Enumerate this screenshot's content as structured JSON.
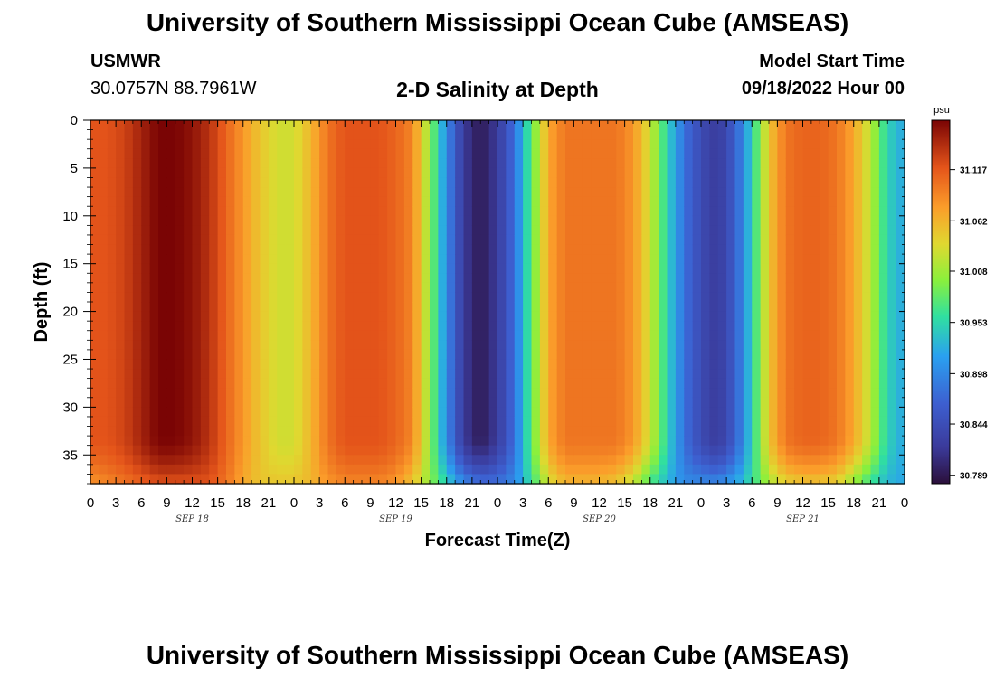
{
  "header": {
    "title_top": "University of Southern Mississippi Ocean Cube (AMSEAS)",
    "station": "USMWR",
    "coords": "30.0757N  88.7961W",
    "plot_title": "2-D Salinity at Depth",
    "model_start_label": "Model Start Time",
    "model_start_value": "09/18/2022 Hour 00",
    "title_bottom": "University of Southern Mississippi Ocean Cube (AMSEAS)"
  },
  "chart_data": {
    "type": "heatmap",
    "title": "2-D Salinity at Depth",
    "xlabel": "Forecast Time(Z)",
    "ylabel": "Depth (ft)",
    "x_tick_labels": [
      "0",
      "3",
      "6",
      "9",
      "12",
      "15",
      "18",
      "21",
      "0",
      "3",
      "6",
      "9",
      "12",
      "15",
      "18",
      "21",
      "0",
      "3",
      "6",
      "9",
      "12",
      "15",
      "18",
      "21",
      "0",
      "3",
      "6",
      "9",
      "12",
      "15",
      "18",
      "21",
      "0"
    ],
    "x_hours_range": [
      0,
      96
    ],
    "date_labels": [
      {
        "text": "SEP 18",
        "hour": 12
      },
      {
        "text": "SEP 19",
        "hour": 36
      },
      {
        "text": "SEP 20",
        "hour": 60
      },
      {
        "text": "SEP 21",
        "hour": 84
      }
    ],
    "y_ticks": [
      0,
      5,
      10,
      15,
      20,
      25,
      30,
      35
    ],
    "y_tick_labels": [
      "0",
      "5",
      "10",
      "15",
      "20",
      "25",
      "30",
      "35"
    ],
    "ylim": [
      38,
      0
    ],
    "colorbar": {
      "unit": "psu",
      "range": [
        30.78,
        31.17
      ],
      "tick_values": [
        31.117,
        31.062,
        31.008,
        30.953,
        30.898,
        30.844,
        30.789
      ],
      "tick_labels": [
        "31.117",
        "31.062",
        "31.008",
        "30.953",
        "30.898",
        "30.844",
        "30.789"
      ]
    },
    "hours": [
      0,
      2,
      4,
      6,
      8,
      10,
      12,
      14,
      16,
      18,
      20,
      22,
      24,
      26,
      28,
      30,
      32,
      34,
      36,
      38,
      40,
      42,
      44,
      46,
      48,
      50,
      52,
      54,
      56,
      58,
      60,
      62,
      64,
      66,
      68,
      70,
      72,
      74,
      76,
      78,
      80,
      82,
      84,
      86,
      88,
      90,
      92,
      94,
      96
    ],
    "upper_column_salinity": [
      31.12,
      31.12,
      31.13,
      31.15,
      31.17,
      31.17,
      31.16,
      31.14,
      31.11,
      31.08,
      31.05,
      31.03,
      31.03,
      31.06,
      31.1,
      31.12,
      31.12,
      31.12,
      31.11,
      31.09,
      31.0,
      30.9,
      30.82,
      30.79,
      30.82,
      30.88,
      30.98,
      31.07,
      31.1,
      31.1,
      31.1,
      31.1,
      31.08,
      31.03,
      30.95,
      30.88,
      30.84,
      30.82,
      30.86,
      30.95,
      31.05,
      31.1,
      31.11,
      31.11,
      31.1,
      31.07,
      31.02,
      30.95,
      30.92
    ],
    "bottom_salinity": [
      31.08,
      31.09,
      31.1,
      31.11,
      31.12,
      31.12,
      31.12,
      31.12,
      31.1,
      31.07,
      31.05,
      31.05,
      31.05,
      31.06,
      31.08,
      31.09,
      31.09,
      31.09,
      31.08,
      31.05,
      31.0,
      30.95,
      30.9,
      30.88,
      30.88,
      30.9,
      30.96,
      31.03,
      31.06,
      31.06,
      31.06,
      31.05,
      31.02,
      30.97,
      30.93,
      30.9,
      30.9,
      30.9,
      30.92,
      30.96,
      31.01,
      31.04,
      31.05,
      31.05,
      31.04,
      31.0,
      30.96,
      30.93,
      30.92
    ]
  }
}
